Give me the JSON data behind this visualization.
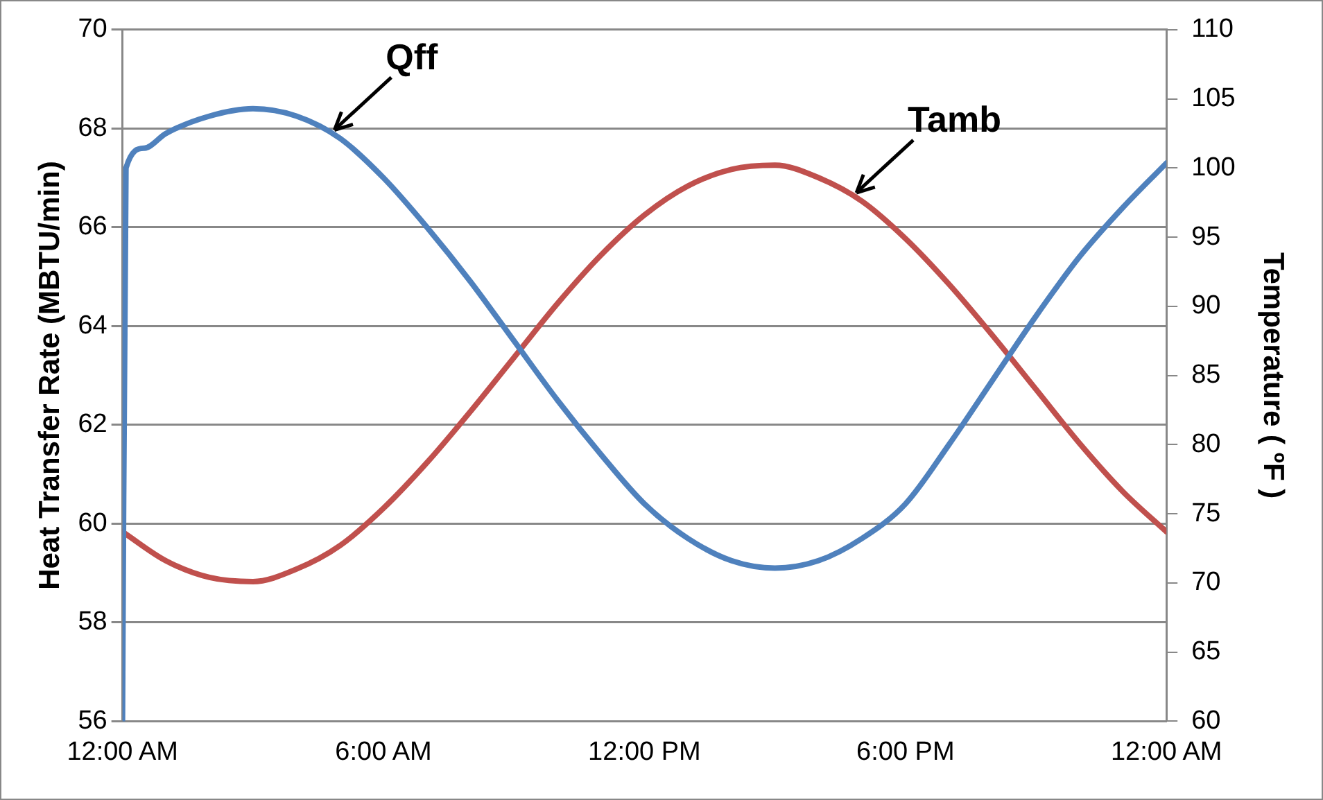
{
  "chart_data": {
    "type": "line",
    "xlabel": null,
    "ylabel": "Heat Transfer Rate (MBTU/min)",
    "y2label": "Temperature ( ºF )",
    "xlim": [
      0,
      24
    ],
    "xticks": [
      {
        "value": 0,
        "label": "12:00 AM"
      },
      {
        "value": 6,
        "label": "6:00 AM"
      },
      {
        "value": 12,
        "label": "12:00 PM"
      },
      {
        "value": 18,
        "label": "6:00 PM"
      },
      {
        "value": 24,
        "label": "12:00 AM"
      }
    ],
    "ylim": [
      56,
      70
    ],
    "yticks": [
      56,
      58,
      60,
      62,
      64,
      66,
      68,
      70
    ],
    "y2lim": [
      60,
      110
    ],
    "y2ticks": [
      60,
      65,
      70,
      75,
      80,
      85,
      90,
      95,
      100,
      105,
      110
    ],
    "grid": "y",
    "line_style": "solid",
    "marker": "none",
    "series": [
      {
        "color": "#4f81bd",
        "x": [
          0,
          0.08,
          0.5,
          1,
          2,
          3,
          4,
          5,
          6,
          7,
          8,
          9,
          10,
          11,
          12,
          13,
          14,
          15,
          16,
          17,
          18,
          19,
          20,
          21,
          22,
          23,
          24
        ],
        "values": [
          56,
          67.2,
          67.6,
          67.9,
          68.25,
          68.4,
          68.25,
          67.8,
          67.0,
          66.0,
          64.9,
          63.7,
          62.5,
          61.4,
          60.4,
          59.7,
          59.25,
          59.1,
          59.25,
          59.7,
          60.4,
          61.6,
          62.9,
          64.2,
          65.4,
          66.4,
          67.3
        ]
      },
      {
        "color": "#c0504d",
        "axis": "y2",
        "x": [
          0,
          1,
          2,
          3,
          4,
          5,
          6,
          7,
          8,
          9,
          10,
          11,
          12,
          13,
          14,
          15,
          16,
          17,
          18,
          19,
          20,
          21,
          22,
          23,
          24
        ],
        "values": [
          73.7,
          71.6,
          70.4,
          70.1,
          71.0,
          72.7,
          75.4,
          78.7,
          82.4,
          86.3,
          90.2,
          93.7,
          96.6,
          98.7,
          99.9,
          100.2,
          99.3,
          97.6,
          94.9,
          91.6,
          87.9,
          84.0,
          80.1,
          76.6,
          73.7
        ]
      }
    ],
    "annotations": [
      {
        "text": "Qff",
        "x": 5,
        "y": 67.8
      },
      {
        "text": "Tamb",
        "x": 17,
        "y": 66.53
      }
    ]
  }
}
